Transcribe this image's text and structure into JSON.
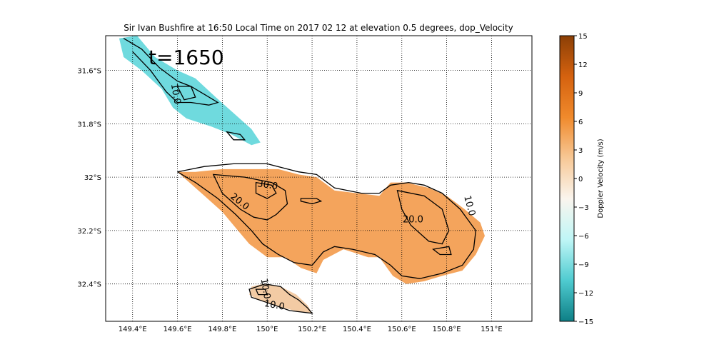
{
  "chart_data": {
    "type": "map",
    "title": "Sir Ivan Bushfire at 16:50 Local Time on 2017 02 12 at elevation 0.5 degrees, dop_Velocity",
    "annotation": "t=1650",
    "xlim": [
      149.28,
      151.18
    ],
    "ylim": [
      -32.54,
      -31.47
    ],
    "x_ticks": [
      {
        "value": 149.4,
        "label": "149.4°E"
      },
      {
        "value": 149.6,
        "label": "149.6°E"
      },
      {
        "value": 149.8,
        "label": "149.8°E"
      },
      {
        "value": 150.0,
        "label": "150°E"
      },
      {
        "value": 150.2,
        "label": "150.2°E"
      },
      {
        "value": 150.4,
        "label": "150.4°E"
      },
      {
        "value": 150.6,
        "label": "150.6°E"
      },
      {
        "value": 150.8,
        "label": "150.8°E"
      },
      {
        "value": 151.0,
        "label": "151°E"
      }
    ],
    "y_ticks": [
      {
        "value": -31.6,
        "label": "31.6°S"
      },
      {
        "value": -31.8,
        "label": "31.8°S"
      },
      {
        "value": -32.0,
        "label": "32°S"
      },
      {
        "value": -32.2,
        "label": "32.2°S"
      },
      {
        "value": -32.4,
        "label": "32.4°S"
      }
    ],
    "grid": true,
    "colorbar": {
      "label": "Doppler Velocity (m/s)",
      "min": -15,
      "max": 15,
      "ticks": [
        "15",
        "12",
        "9",
        "6",
        "3",
        "0",
        "−3",
        "−6",
        "−9",
        "−12",
        "−15"
      ],
      "colors": [
        "#0e7f86",
        "#4fcbd0",
        "#bff6f6",
        "#faf5ee",
        "#f7c896",
        "#f08a2c",
        "#d5620f",
        "#8b3f06"
      ]
    },
    "contour_labels": [
      {
        "text": "10.0",
        "lon": 149.58,
        "lat": -31.69,
        "rot": 80
      },
      {
        "text": "30.0",
        "lon": 150.0,
        "lat": -32.04,
        "rot": 8
      },
      {
        "text": "20.0",
        "lon": 149.87,
        "lat": -32.1,
        "rot": 38
      },
      {
        "text": "20.0",
        "lon": 150.65,
        "lat": -32.17,
        "rot": 0
      },
      {
        "text": "10.0",
        "lon": 150.89,
        "lat": -32.11,
        "rot": 75
      },
      {
        "text": "10.0",
        "lon": 149.98,
        "lat": -32.42,
        "rot": 80
      },
      {
        "text": "10.0",
        "lon": 150.03,
        "lat": -32.49,
        "rot": 10
      }
    ],
    "regions": [
      {
        "name": "north-cell",
        "fill": "#5fd6da",
        "polygon": [
          [
            149.34,
            -31.48
          ],
          [
            149.42,
            -31.47
          ],
          [
            149.5,
            -31.55
          ],
          [
            149.6,
            -31.6
          ],
          [
            149.68,
            -31.63
          ],
          [
            149.77,
            -31.7
          ],
          [
            149.85,
            -31.76
          ],
          [
            149.93,
            -31.82
          ],
          [
            149.97,
            -31.87
          ],
          [
            149.93,
            -31.88
          ],
          [
            149.84,
            -31.84
          ],
          [
            149.75,
            -31.81
          ],
          [
            149.64,
            -31.78
          ],
          [
            149.58,
            -31.74
          ],
          [
            149.53,
            -31.67
          ],
          [
            149.44,
            -31.6
          ],
          [
            149.36,
            -31.55
          ]
        ]
      },
      {
        "name": "main-plume",
        "fill": "#f39a4a",
        "polygon": [
          [
            149.68,
            -31.98
          ],
          [
            149.8,
            -31.97
          ],
          [
            149.92,
            -31.97
          ],
          [
            150.05,
            -31.97
          ],
          [
            150.14,
            -31.99
          ],
          [
            150.22,
            -32.0
          ],
          [
            150.3,
            -32.05
          ],
          [
            150.4,
            -32.06
          ],
          [
            150.5,
            -32.07
          ],
          [
            150.55,
            -32.02
          ],
          [
            150.62,
            -32.02
          ],
          [
            150.72,
            -32.04
          ],
          [
            150.8,
            -32.07
          ],
          [
            150.88,
            -32.12
          ],
          [
            150.95,
            -32.17
          ],
          [
            150.97,
            -32.22
          ],
          [
            150.93,
            -32.29
          ],
          [
            150.87,
            -32.35
          ],
          [
            150.78,
            -32.37
          ],
          [
            150.7,
            -32.39
          ],
          [
            150.62,
            -32.4
          ],
          [
            150.56,
            -32.37
          ],
          [
            150.5,
            -32.3
          ],
          [
            150.45,
            -32.3
          ],
          [
            150.34,
            -32.27
          ],
          [
            150.25,
            -32.31
          ],
          [
            150.22,
            -32.36
          ],
          [
            150.15,
            -32.34
          ],
          [
            150.08,
            -32.3
          ],
          [
            150.0,
            -32.3
          ],
          [
            149.92,
            -32.25
          ],
          [
            149.86,
            -32.19
          ],
          [
            149.8,
            -32.13
          ],
          [
            149.72,
            -32.07
          ],
          [
            149.6,
            -31.98
          ]
        ]
      },
      {
        "name": "south-cell",
        "fill": "#f2c59a",
        "polygon": [
          [
            149.93,
            -32.41
          ],
          [
            149.98,
            -32.4
          ],
          [
            150.06,
            -32.41
          ],
          [
            150.13,
            -32.44
          ],
          [
            150.18,
            -32.48
          ],
          [
            150.2,
            -32.51
          ],
          [
            150.12,
            -32.5
          ],
          [
            150.03,
            -32.48
          ],
          [
            149.96,
            -32.46
          ],
          [
            149.92,
            -32.44
          ]
        ]
      }
    ],
    "contours": [
      {
        "name": "contour-plume-10",
        "points": [
          [
            149.6,
            -31.98
          ],
          [
            149.72,
            -31.96
          ],
          [
            149.85,
            -31.95
          ],
          [
            150.0,
            -31.95
          ],
          [
            150.14,
            -31.98
          ],
          [
            150.22,
            -31.99
          ],
          [
            150.3,
            -32.04
          ],
          [
            150.42,
            -32.06
          ],
          [
            150.5,
            -32.06
          ],
          [
            150.55,
            -32.03
          ],
          [
            150.63,
            -32.02
          ],
          [
            150.7,
            -32.03
          ],
          [
            150.78,
            -32.06
          ],
          [
            150.86,
            -32.12
          ],
          [
            150.93,
            -32.2
          ],
          [
            150.92,
            -32.27
          ],
          [
            150.87,
            -32.33
          ],
          [
            150.78,
            -32.36
          ],
          [
            150.68,
            -32.38
          ],
          [
            150.6,
            -32.37
          ],
          [
            150.55,
            -32.33
          ],
          [
            150.48,
            -32.29
          ],
          [
            150.38,
            -32.27
          ],
          [
            150.3,
            -32.26
          ],
          [
            150.25,
            -32.28
          ],
          [
            150.2,
            -32.33
          ],
          [
            150.12,
            -32.32
          ],
          [
            150.05,
            -32.29
          ],
          [
            149.98,
            -32.25
          ],
          [
            149.93,
            -32.2
          ],
          [
            149.86,
            -32.14
          ],
          [
            149.78,
            -32.08
          ],
          [
            149.68,
            -32.02
          ],
          [
            149.6,
            -31.98
          ]
        ],
        "closed": false
      },
      {
        "name": "contour-plume-20",
        "points": [
          [
            149.76,
            -31.99
          ],
          [
            149.9,
            -32.0
          ],
          [
            150.02,
            -32.02
          ],
          [
            150.08,
            -32.05
          ],
          [
            150.09,
            -32.1
          ],
          [
            150.04,
            -32.14
          ],
          [
            150.0,
            -32.16
          ],
          [
            149.94,
            -32.15
          ],
          [
            149.88,
            -32.12
          ],
          [
            149.8,
            -32.06
          ]
        ],
        "closed": true
      },
      {
        "name": "contour-plume-30",
        "points": [
          [
            149.95,
            -32.02
          ],
          [
            150.02,
            -32.03
          ],
          [
            150.04,
            -32.06
          ],
          [
            150.0,
            -32.08
          ],
          [
            149.95,
            -32.06
          ]
        ],
        "closed": true
      },
      {
        "name": "contour-plume-small",
        "points": [
          [
            150.15,
            -32.08
          ],
          [
            150.22,
            -32.08
          ],
          [
            150.24,
            -32.09
          ],
          [
            150.2,
            -32.1
          ],
          [
            150.15,
            -32.09
          ]
        ],
        "closed": true
      },
      {
        "name": "contour-east-20",
        "points": [
          [
            150.58,
            -32.05
          ],
          [
            150.7,
            -32.07
          ],
          [
            150.78,
            -32.12
          ],
          [
            150.81,
            -32.2
          ],
          [
            150.78,
            -32.25
          ],
          [
            150.72,
            -32.24
          ],
          [
            150.64,
            -32.18
          ],
          [
            150.6,
            -32.12
          ]
        ],
        "closed": true
      },
      {
        "name": "contour-east-small",
        "points": [
          [
            150.74,
            -32.27
          ],
          [
            150.81,
            -32.26
          ],
          [
            150.82,
            -32.29
          ],
          [
            150.77,
            -32.29
          ]
        ],
        "closed": true
      },
      {
        "name": "contour-north-10",
        "points": [
          [
            149.36,
            -31.48
          ],
          [
            149.44,
            -31.52
          ],
          [
            149.52,
            -31.59
          ],
          [
            149.6,
            -31.64
          ],
          [
            149.66,
            -31.66
          ],
          [
            149.72,
            -31.69
          ],
          [
            149.78,
            -31.72
          ],
          [
            149.74,
            -31.73
          ],
          [
            149.66,
            -31.72
          ],
          [
            149.6,
            -31.72
          ],
          [
            149.55,
            -31.68
          ],
          [
            149.48,
            -31.6
          ],
          [
            149.4,
            -31.53
          ]
        ],
        "closed": false
      },
      {
        "name": "contour-north-inner",
        "points": [
          [
            149.6,
            -31.66
          ],
          [
            149.66,
            -31.66
          ],
          [
            149.68,
            -31.7
          ],
          [
            149.63,
            -31.71
          ]
        ],
        "closed": true
      },
      {
        "name": "contour-north-tail",
        "points": [
          [
            149.82,
            -31.83
          ],
          [
            149.88,
            -31.84
          ],
          [
            149.9,
            -31.86
          ],
          [
            149.85,
            -31.86
          ]
        ],
        "closed": true
      },
      {
        "name": "contour-south-10",
        "points": [
          [
            149.92,
            -32.42
          ],
          [
            149.99,
            -32.4
          ],
          [
            150.06,
            -32.41
          ],
          [
            150.1,
            -32.44
          ],
          [
            150.14,
            -32.46
          ],
          [
            150.18,
            -32.49
          ],
          [
            150.2,
            -32.51
          ],
          [
            150.1,
            -32.5
          ],
          [
            150.0,
            -32.47
          ],
          [
            149.93,
            -32.45
          ]
        ],
        "closed": true
      },
      {
        "name": "contour-south-inner",
        "points": [
          [
            149.95,
            -32.42
          ],
          [
            149.99,
            -32.42
          ],
          [
            150.0,
            -32.44
          ],
          [
            149.96,
            -32.44
          ]
        ],
        "closed": true
      }
    ]
  }
}
